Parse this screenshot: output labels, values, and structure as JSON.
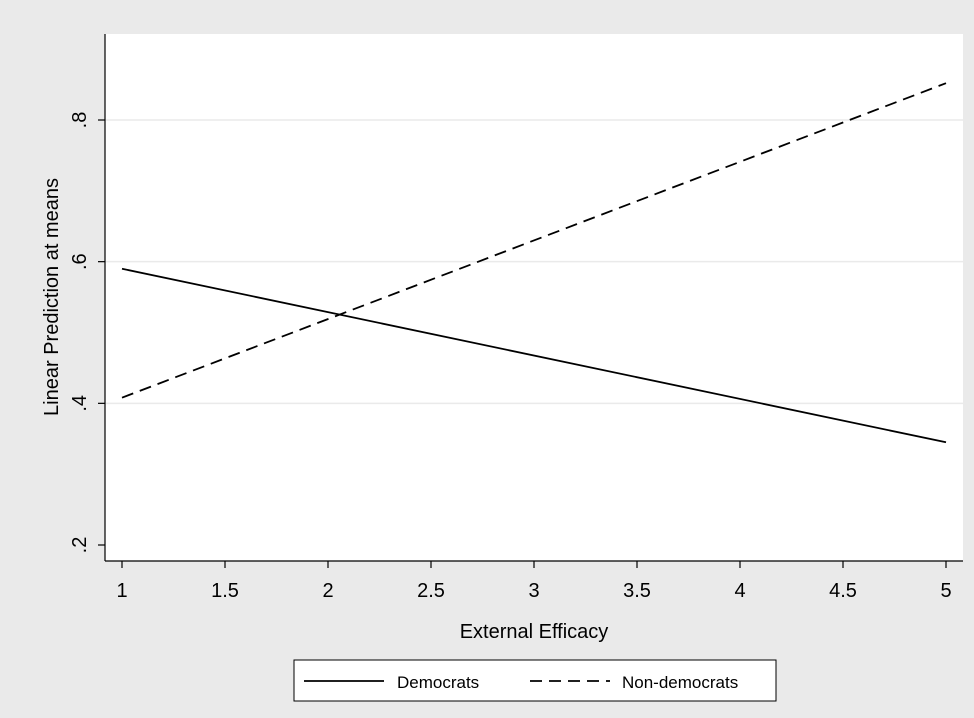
{
  "chart_data": {
    "type": "line",
    "title": "",
    "xlabel": "External Efficacy",
    "ylabel": "Linear Prediction at means",
    "xlim": [
      1,
      5
    ],
    "ylim": [
      0.2,
      0.9
    ],
    "xticks": [
      1,
      1.5,
      2,
      2.5,
      3,
      3.5,
      4,
      4.5,
      5
    ],
    "xtick_labels": [
      "1",
      "1.5",
      "2",
      "2.5",
      "3",
      "3.5",
      "4",
      "4.5",
      "5"
    ],
    "yticks": [
      0.2,
      0.4,
      0.6,
      0.8
    ],
    "ytick_labels": [
      ".2",
      ".4",
      ".6",
      ".8"
    ],
    "grid": true,
    "legend_position": "bottom",
    "series": [
      {
        "name": "Democrats",
        "style": "solid",
        "color": "#000000",
        "x": [
          1,
          5
        ],
        "y": [
          0.59,
          0.345
        ]
      },
      {
        "name": "Non-democrats",
        "style": "dashed",
        "color": "#000000",
        "x": [
          1,
          5
        ],
        "y": [
          0.408,
          0.852
        ]
      }
    ]
  },
  "colors": {
    "background": "#eaeaea",
    "plot_background": "#ffffff",
    "gridline": "#eaeaea",
    "axis": "#000000"
  }
}
